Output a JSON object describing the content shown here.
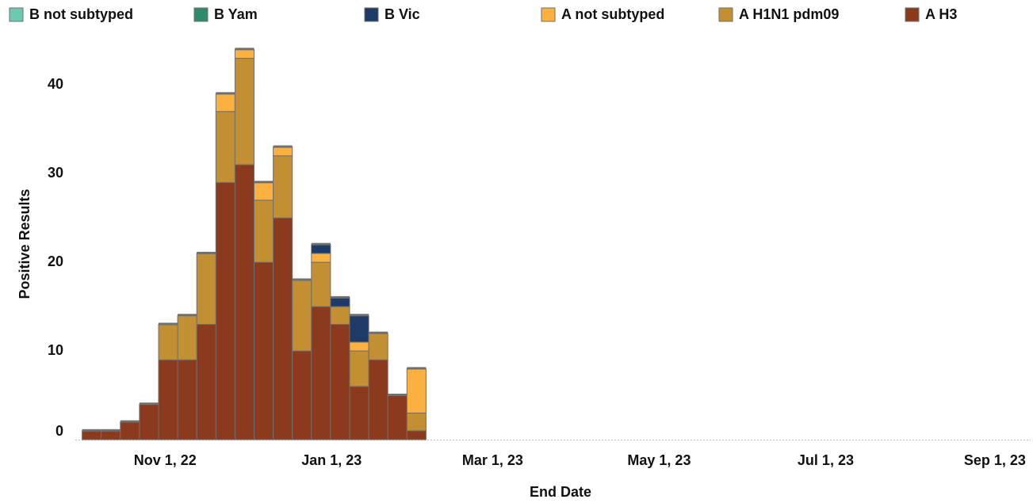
{
  "chart_data": {
    "type": "bar",
    "stacked": true,
    "x_label": "End Date",
    "y_label": "Positive Results",
    "x": [
      "2022-10-08",
      "2022-10-15",
      "2022-10-22",
      "2022-10-29",
      "2022-11-05",
      "2022-11-12",
      "2022-11-19",
      "2022-11-26",
      "2022-12-03",
      "2022-12-10",
      "2022-12-17",
      "2022-12-24",
      "2022-12-31",
      "2023-01-07",
      "2023-01-14",
      "2023-01-21",
      "2023-01-28",
      "2023-02-04"
    ],
    "series": [
      {
        "name": "A H3",
        "color": "#8b3a1e",
        "values": [
          1,
          1,
          2,
          4,
          9,
          9,
          13,
          29,
          31,
          20,
          25,
          10,
          15,
          13,
          6,
          9,
          5,
          1
        ]
      },
      {
        "name": "A H1N1 pdm09",
        "color": "#c38f33",
        "values": [
          0,
          0,
          0,
          0,
          4,
          5,
          8,
          8,
          12,
          7,
          7,
          8,
          5,
          2,
          4,
          3,
          0,
          2
        ]
      },
      {
        "name": "A not subtyped",
        "color": "#fbb040",
        "values": [
          0,
          0,
          0,
          0,
          0,
          0,
          0,
          2,
          1,
          2,
          1,
          0,
          1,
          0,
          1,
          0,
          0,
          5
        ]
      },
      {
        "name": "B Vic",
        "color": "#1e3a66",
        "values": [
          0,
          0,
          0,
          0,
          0,
          0,
          0,
          0,
          0,
          0,
          0,
          0,
          1,
          1,
          3,
          0,
          0,
          0
        ]
      },
      {
        "name": "B Yam",
        "color": "#2e8b6a",
        "values": [
          0,
          0,
          0,
          0,
          0,
          0,
          0,
          0,
          0,
          0,
          0,
          0,
          0,
          0,
          0,
          0,
          0,
          0
        ]
      },
      {
        "name": "B not subtyped",
        "color": "#6cc8b0",
        "values": [
          0,
          0,
          0,
          0,
          0,
          0,
          0,
          0,
          0,
          0,
          0,
          0,
          0,
          0,
          0,
          0,
          0,
          0
        ]
      }
    ],
    "xlim": [
      "2022-10-02",
      "2023-09-17"
    ],
    "xticks": [
      {
        "value": "2022-11-01",
        "label": "Nov 1, 22"
      },
      {
        "value": "2023-01-01",
        "label": "Jan 1, 23"
      },
      {
        "value": "2023-03-01",
        "label": "Mar 1, 23"
      },
      {
        "value": "2023-05-01",
        "label": "May 1, 23"
      },
      {
        "value": "2023-07-01",
        "label": "Jul 1, 23"
      },
      {
        "value": "2023-09-01",
        "label": "Sep 1, 23"
      }
    ],
    "ylim": [
      0,
      46
    ],
    "yticks": [
      0,
      10,
      20,
      30,
      40
    ],
    "grid": false
  }
}
